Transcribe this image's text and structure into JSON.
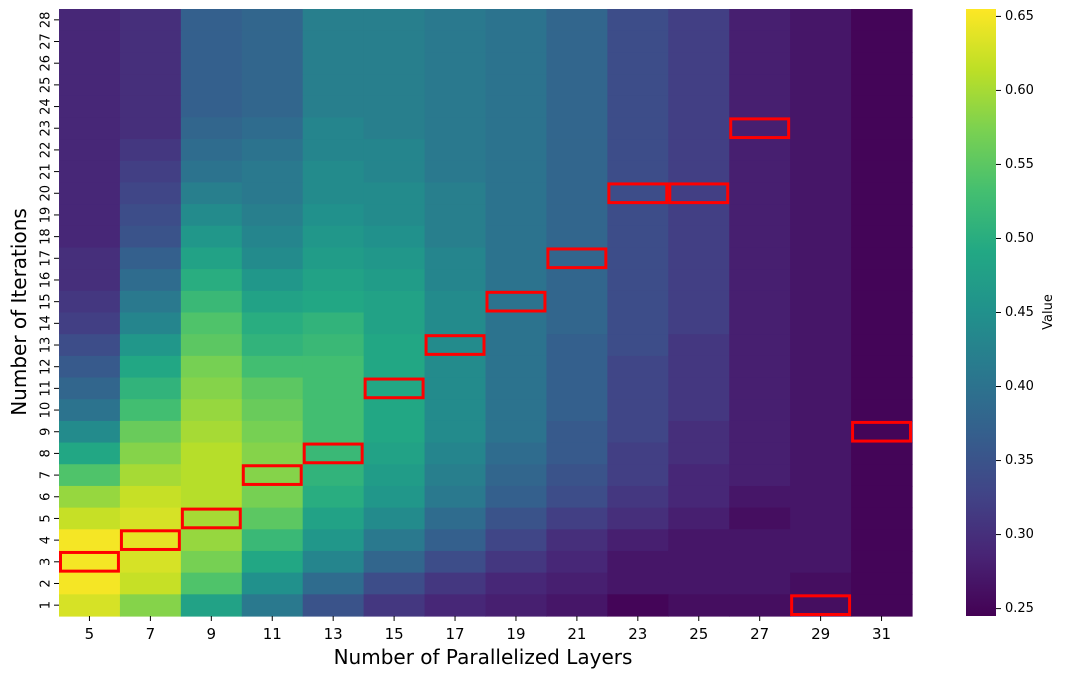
{
  "chart_data": {
    "type": "heatmap",
    "title": "",
    "xlabel": "Number of Parallelized Layers",
    "ylabel": "Number of Iterations",
    "colorbar_label": "Value",
    "colormap": "viridis",
    "vmin": 0.245,
    "vmax": 0.655,
    "colorbar_ticks": [
      "0.25",
      "0.30",
      "0.35",
      "0.40",
      "0.45",
      "0.50",
      "0.55",
      "0.60",
      "0.65"
    ],
    "x_tick_labels": [
      "5",
      "7",
      "9",
      "11",
      "13",
      "15",
      "17",
      "19",
      "21",
      "23",
      "25",
      "27",
      "29",
      "31"
    ],
    "y_tick_labels": [
      "28",
      "27",
      "26",
      "25",
      "24",
      "23",
      "22",
      "21",
      "20",
      "19",
      "18",
      "17",
      "16",
      "15",
      "14",
      "13",
      "12",
      "11",
      "10",
      "9",
      "8",
      "7",
      "6",
      "5",
      "4",
      "3",
      "2",
      "1"
    ],
    "x": [
      5,
      7,
      9,
      11,
      13,
      15,
      17,
      19,
      21,
      23,
      25,
      27,
      29,
      31
    ],
    "y_iterations": [
      28,
      27,
      26,
      25,
      24,
      23,
      22,
      21,
      20,
      19,
      18,
      17,
      16,
      15,
      14,
      13,
      12,
      11,
      10,
      9,
      8,
      7,
      6,
      5,
      4,
      3,
      2,
      1
    ],
    "values": [
      [
        0.29,
        0.3,
        0.37,
        0.38,
        0.42,
        0.42,
        0.41,
        0.4,
        0.38,
        0.34,
        0.32,
        0.28,
        0.27,
        0.25
      ],
      [
        0.29,
        0.3,
        0.37,
        0.38,
        0.42,
        0.42,
        0.41,
        0.4,
        0.38,
        0.34,
        0.32,
        0.28,
        0.27,
        0.25
      ],
      [
        0.29,
        0.3,
        0.37,
        0.38,
        0.42,
        0.42,
        0.41,
        0.4,
        0.38,
        0.34,
        0.32,
        0.28,
        0.27,
        0.25
      ],
      [
        0.29,
        0.3,
        0.37,
        0.38,
        0.42,
        0.42,
        0.41,
        0.4,
        0.38,
        0.34,
        0.32,
        0.28,
        0.27,
        0.25
      ],
      [
        0.29,
        0.3,
        0.37,
        0.38,
        0.42,
        0.42,
        0.41,
        0.4,
        0.38,
        0.34,
        0.32,
        0.28,
        0.27,
        0.25
      ],
      [
        0.29,
        0.3,
        0.38,
        0.39,
        0.43,
        0.42,
        0.41,
        0.4,
        0.38,
        0.34,
        0.32,
        0.28,
        0.27,
        0.25
      ],
      [
        0.29,
        0.31,
        0.39,
        0.4,
        0.43,
        0.43,
        0.41,
        0.4,
        0.38,
        0.34,
        0.32,
        0.28,
        0.27,
        0.25
      ],
      [
        0.29,
        0.32,
        0.4,
        0.41,
        0.44,
        0.43,
        0.41,
        0.4,
        0.38,
        0.34,
        0.32,
        0.28,
        0.27,
        0.25
      ],
      [
        0.29,
        0.33,
        0.42,
        0.41,
        0.44,
        0.44,
        0.42,
        0.4,
        0.38,
        0.34,
        0.32,
        0.28,
        0.27,
        0.25
      ],
      [
        0.29,
        0.34,
        0.44,
        0.42,
        0.45,
        0.44,
        0.42,
        0.4,
        0.38,
        0.34,
        0.32,
        0.28,
        0.27,
        0.25
      ],
      [
        0.29,
        0.35,
        0.46,
        0.43,
        0.46,
        0.45,
        0.42,
        0.4,
        0.38,
        0.34,
        0.32,
        0.28,
        0.27,
        0.25
      ],
      [
        0.3,
        0.37,
        0.48,
        0.44,
        0.47,
        0.46,
        0.43,
        0.4,
        0.38,
        0.34,
        0.32,
        0.28,
        0.27,
        0.25
      ],
      [
        0.3,
        0.39,
        0.5,
        0.46,
        0.48,
        0.47,
        0.43,
        0.4,
        0.38,
        0.34,
        0.32,
        0.28,
        0.27,
        0.25
      ],
      [
        0.31,
        0.41,
        0.52,
        0.48,
        0.49,
        0.48,
        0.44,
        0.4,
        0.38,
        0.34,
        0.32,
        0.28,
        0.27,
        0.25
      ],
      [
        0.32,
        0.43,
        0.54,
        0.5,
        0.51,
        0.48,
        0.44,
        0.4,
        0.38,
        0.34,
        0.32,
        0.28,
        0.27,
        0.25
      ],
      [
        0.34,
        0.46,
        0.55,
        0.51,
        0.52,
        0.49,
        0.44,
        0.4,
        0.37,
        0.34,
        0.31,
        0.28,
        0.27,
        0.25
      ],
      [
        0.36,
        0.49,
        0.57,
        0.53,
        0.53,
        0.49,
        0.44,
        0.4,
        0.37,
        0.33,
        0.31,
        0.28,
        0.27,
        0.25
      ],
      [
        0.38,
        0.51,
        0.58,
        0.55,
        0.53,
        0.49,
        0.44,
        0.4,
        0.37,
        0.33,
        0.31,
        0.28,
        0.27,
        0.25
      ],
      [
        0.4,
        0.53,
        0.59,
        0.56,
        0.53,
        0.49,
        0.44,
        0.4,
        0.37,
        0.33,
        0.31,
        0.28,
        0.27,
        0.25
      ],
      [
        0.44,
        0.56,
        0.6,
        0.57,
        0.53,
        0.49,
        0.44,
        0.4,
        0.36,
        0.33,
        0.3,
        0.28,
        0.27,
        0.25
      ],
      [
        0.49,
        0.58,
        0.61,
        0.58,
        0.52,
        0.48,
        0.43,
        0.39,
        0.36,
        0.32,
        0.3,
        0.28,
        0.27,
        0.25
      ],
      [
        0.54,
        0.6,
        0.61,
        0.58,
        0.51,
        0.47,
        0.42,
        0.38,
        0.35,
        0.32,
        0.29,
        0.28,
        0.27,
        0.25
      ],
      [
        0.59,
        0.62,
        0.61,
        0.57,
        0.5,
        0.46,
        0.41,
        0.37,
        0.34,
        0.31,
        0.29,
        0.27,
        0.27,
        0.25
      ],
      [
        0.62,
        0.63,
        0.6,
        0.55,
        0.48,
        0.44,
        0.39,
        0.35,
        0.32,
        0.3,
        0.28,
        0.26,
        0.27,
        0.25
      ],
      [
        0.65,
        0.64,
        0.59,
        0.52,
        0.46,
        0.41,
        0.37,
        0.33,
        0.3,
        0.28,
        0.27,
        0.27,
        0.27,
        0.25
      ],
      [
        0.65,
        0.63,
        0.57,
        0.49,
        0.43,
        0.38,
        0.34,
        0.31,
        0.29,
        0.27,
        0.27,
        0.27,
        0.27,
        0.25
      ],
      [
        0.65,
        0.62,
        0.54,
        0.45,
        0.39,
        0.34,
        0.31,
        0.29,
        0.28,
        0.27,
        0.27,
        0.27,
        0.26,
        0.25
      ],
      [
        0.63,
        0.58,
        0.48,
        0.41,
        0.35,
        0.31,
        0.29,
        0.28,
        0.27,
        0.25,
        0.26,
        0.26,
        0.26,
        0.25
      ]
    ],
    "highlighted_cells": [
      {
        "layers": 5,
        "iterations": 3
      },
      {
        "layers": 7,
        "iterations": 4
      },
      {
        "layers": 9,
        "iterations": 5
      },
      {
        "layers": 11,
        "iterations": 7
      },
      {
        "layers": 13,
        "iterations": 8
      },
      {
        "layers": 15,
        "iterations": 11
      },
      {
        "layers": 17,
        "iterations": 13
      },
      {
        "layers": 19,
        "iterations": 15
      },
      {
        "layers": 21,
        "iterations": 17
      },
      {
        "layers": 23,
        "iterations": 20
      },
      {
        "layers": 25,
        "iterations": 20
      },
      {
        "layers": 27,
        "iterations": 23
      },
      {
        "layers": 29,
        "iterations": 1
      },
      {
        "layers": 31,
        "iterations": 9
      }
    ],
    "highlight_color": "#ff0000"
  }
}
